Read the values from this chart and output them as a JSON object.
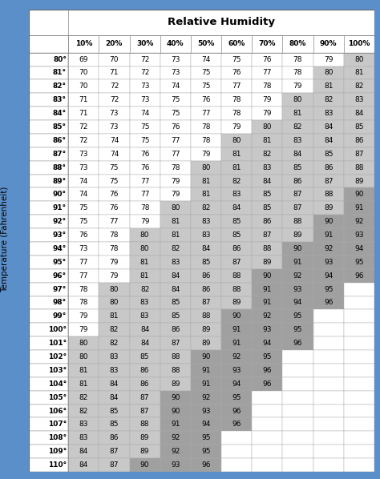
{
  "title": "Relative Humidity",
  "ylabel": "Temperature (Fahrenheit)",
  "col_headers": [
    "10%",
    "20%",
    "30%",
    "40%",
    "50%",
    "60%",
    "70%",
    "80%",
    "90%",
    "100%"
  ],
  "row_labels": [
    "80°",
    "81°",
    "82°",
    "83°",
    "84°",
    "85°",
    "86°",
    "87°",
    "88°",
    "89°",
    "90°",
    "91°",
    "92°",
    "93°",
    "94°",
    "95°",
    "96°",
    "97°",
    "98°",
    "99°",
    "100°",
    "101°",
    "102°",
    "103°",
    "104°",
    "105°",
    "106°",
    "107°",
    "108°",
    "109°",
    "110°"
  ],
  "table_data": [
    [
      69,
      70,
      72,
      73,
      74,
      75,
      76,
      78,
      79,
      80
    ],
    [
      70,
      71,
      72,
      73,
      75,
      76,
      77,
      78,
      80,
      81
    ],
    [
      70,
      72,
      73,
      74,
      75,
      77,
      78,
      79,
      81,
      82
    ],
    [
      71,
      72,
      73,
      75,
      76,
      78,
      79,
      80,
      82,
      83
    ],
    [
      71,
      73,
      74,
      75,
      77,
      78,
      79,
      81,
      83,
      84
    ],
    [
      72,
      73,
      75,
      76,
      78,
      79,
      80,
      82,
      84,
      85
    ],
    [
      72,
      74,
      75,
      77,
      78,
      80,
      81,
      83,
      84,
      86
    ],
    [
      73,
      74,
      76,
      77,
      79,
      81,
      82,
      84,
      85,
      87
    ],
    [
      73,
      75,
      76,
      78,
      80,
      81,
      83,
      85,
      86,
      88
    ],
    [
      74,
      75,
      77,
      79,
      81,
      82,
      84,
      86,
      87,
      89
    ],
    [
      74,
      76,
      77,
      79,
      81,
      83,
      85,
      87,
      88,
      90
    ],
    [
      75,
      76,
      78,
      80,
      82,
      84,
      85,
      87,
      89,
      91
    ],
    [
      75,
      77,
      79,
      81,
      83,
      85,
      86,
      88,
      90,
      92
    ],
    [
      76,
      78,
      80,
      81,
      83,
      85,
      87,
      89,
      91,
      93
    ],
    [
      73,
      78,
      80,
      82,
      84,
      86,
      88,
      90,
      92,
      94
    ],
    [
      77,
      79,
      81,
      83,
      85,
      87,
      89,
      91,
      93,
      95
    ],
    [
      77,
      79,
      81,
      84,
      86,
      88,
      90,
      92,
      94,
      96
    ],
    [
      78,
      80,
      82,
      84,
      86,
      88,
      91,
      93,
      95,
      null
    ],
    [
      78,
      80,
      83,
      85,
      87,
      89,
      91,
      94,
      96,
      null
    ],
    [
      79,
      81,
      83,
      85,
      88,
      90,
      92,
      95,
      null,
      null
    ],
    [
      79,
      82,
      84,
      86,
      89,
      91,
      93,
      95,
      null,
      null
    ],
    [
      80,
      82,
      84,
      87,
      89,
      91,
      94,
      96,
      null,
      null
    ],
    [
      80,
      83,
      85,
      88,
      90,
      92,
      95,
      null,
      null,
      null
    ],
    [
      81,
      83,
      86,
      88,
      91,
      93,
      96,
      null,
      null,
      null
    ],
    [
      81,
      84,
      86,
      89,
      91,
      94,
      96,
      null,
      null,
      null
    ],
    [
      82,
      84,
      87,
      90,
      92,
      95,
      null,
      null,
      null,
      null
    ],
    [
      82,
      85,
      87,
      90,
      93,
      96,
      null,
      null,
      null,
      null
    ],
    [
      83,
      85,
      88,
      91,
      94,
      96,
      null,
      null,
      null,
      null
    ],
    [
      83,
      86,
      89,
      92,
      95,
      null,
      null,
      null,
      null,
      null
    ],
    [
      84,
      87,
      89,
      92,
      95,
      null,
      null,
      null,
      null,
      null
    ],
    [
      84,
      87,
      90,
      93,
      96,
      null,
      null,
      null,
      null,
      null
    ]
  ],
  "danger_threshold": 90,
  "caution_threshold": 80,
  "bg_outer": "#5b8fc9",
  "bg_table": "#ffffff",
  "danger_color": "#a0a0a0",
  "caution_color": "#c8c8c8",
  "normal_color": "#ffffff",
  "text_color": "#000000",
  "title_fontsize": 9.5,
  "cell_fontsize": 6.5,
  "header_fontsize": 6.5,
  "row_label_fontsize": 6.5
}
